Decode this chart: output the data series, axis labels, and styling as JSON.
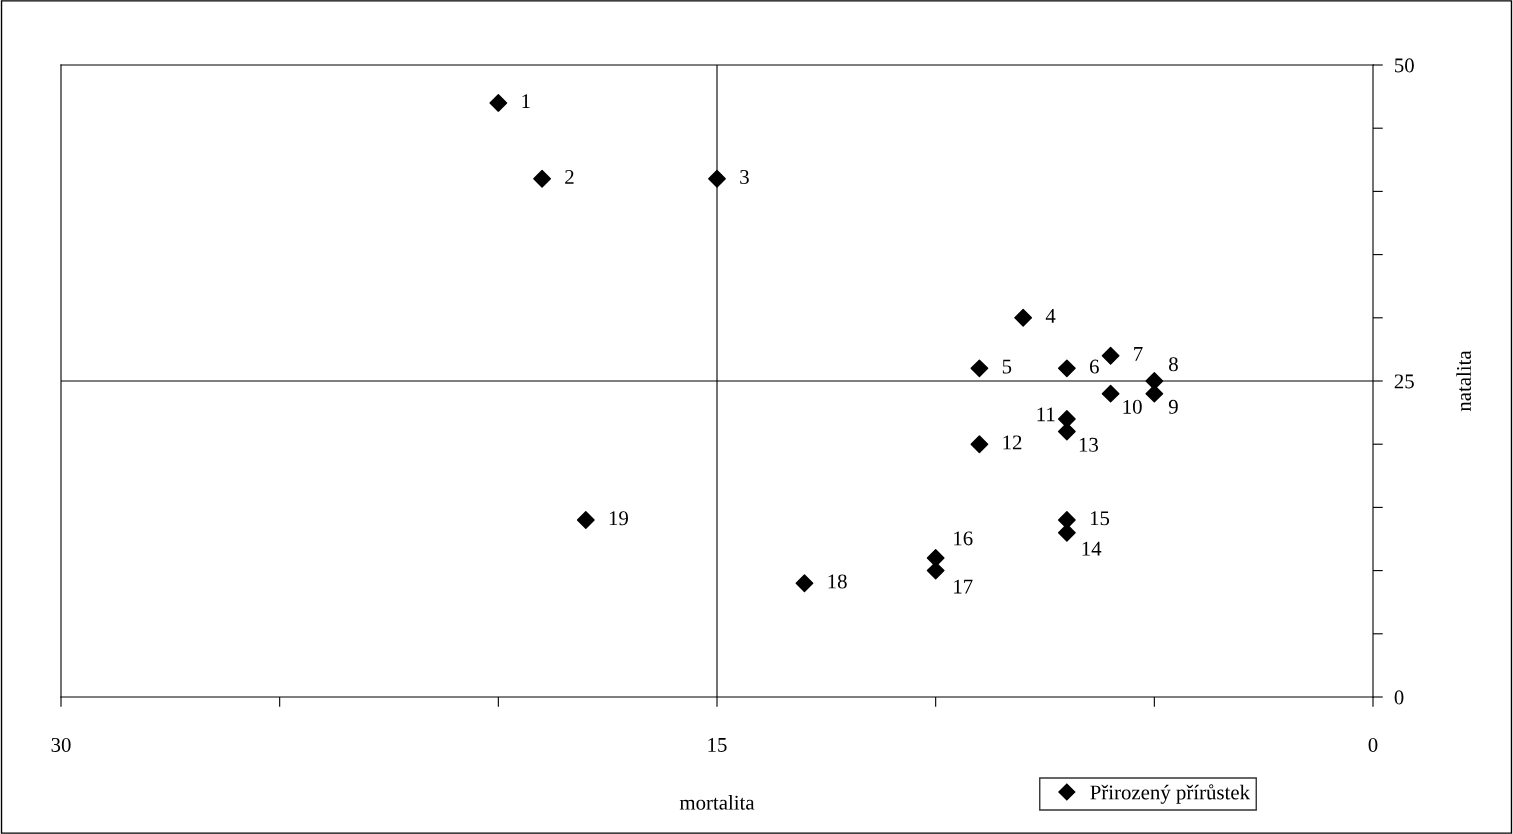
{
  "chart_data": {
    "type": "scatter",
    "xlabel": "mortalita",
    "ylabel": "natalita",
    "x": [
      20,
      19,
      15,
      8,
      9,
      7,
      6,
      5,
      5,
      6,
      7,
      9,
      7,
      7,
      7,
      10,
      10,
      13,
      18
    ],
    "series": [
      {
        "name": "Přirozený přírůstek",
        "color": "#000000",
        "values": [
          47,
          41,
          41,
          30,
          26,
          26,
          27,
          25,
          24,
          24,
          22,
          20,
          21,
          13,
          14,
          11,
          10,
          9,
          14
        ]
      }
    ],
    "xlim": [
      30,
      0
    ],
    "xticks": [
      30,
      {
        "value": 25,
        "label": null
      },
      {
        "value": 20,
        "label": null
      },
      15,
      {
        "value": 10,
        "label": null
      },
      {
        "value": 5,
        "label": null
      },
      0
    ],
    "ylim": [
      0,
      50
    ],
    "yticks": [
      0,
      {
        "value": 5,
        "label": null
      },
      {
        "value": 10,
        "label": null
      },
      {
        "value": 15,
        "label": null
      },
      {
        "value": 20,
        "label": null
      },
      25,
      {
        "value": 30,
        "label": null
      },
      {
        "value": 35,
        "label": null
      },
      {
        "value": 40,
        "label": null
      },
      {
        "value": 45,
        "label": null
      },
      50
    ],
    "ref_lines": [
      {
        "axis": "x",
        "value": 15,
        "color": "#000000"
      },
      {
        "axis": "y",
        "value": 25,
        "color": "#000000"
      }
    ],
    "annotations": [
      {
        "text": "1",
        "x": 20,
        "y": 47
      },
      {
        "text": "2",
        "x": 19,
        "y": 41
      },
      {
        "text": "3",
        "x": 15,
        "y": 41
      },
      {
        "text": "4",
        "x": 8,
        "y": 30
      },
      {
        "text": "5",
        "x": 9,
        "y": 26
      },
      {
        "text": "6",
        "x": 7,
        "y": 26
      },
      {
        "text": "7",
        "x": 6,
        "y": 27
      },
      {
        "text": "8",
        "x": 5,
        "y": 25
      },
      {
        "text": "9",
        "x": 5,
        "y": 24
      },
      {
        "text": "10",
        "x": 6,
        "y": 24
      },
      {
        "text": "11",
        "x": 7,
        "y": 22
      },
      {
        "text": "12",
        "x": 9,
        "y": 20
      },
      {
        "text": "13",
        "x": 7,
        "y": 21
      },
      {
        "text": "14",
        "x": 7,
        "y": 13
      },
      {
        "text": "15",
        "x": 7,
        "y": 14
      },
      {
        "text": "16",
        "x": 10,
        "y": 11
      },
      {
        "text": "17",
        "x": 10,
        "y": 10
      },
      {
        "text": "18",
        "x": 13,
        "y": 9
      },
      {
        "text": "19",
        "x": 18,
        "y": 14
      }
    ],
    "marker": "diamond",
    "grid": false,
    "legend": "bottom right"
  }
}
